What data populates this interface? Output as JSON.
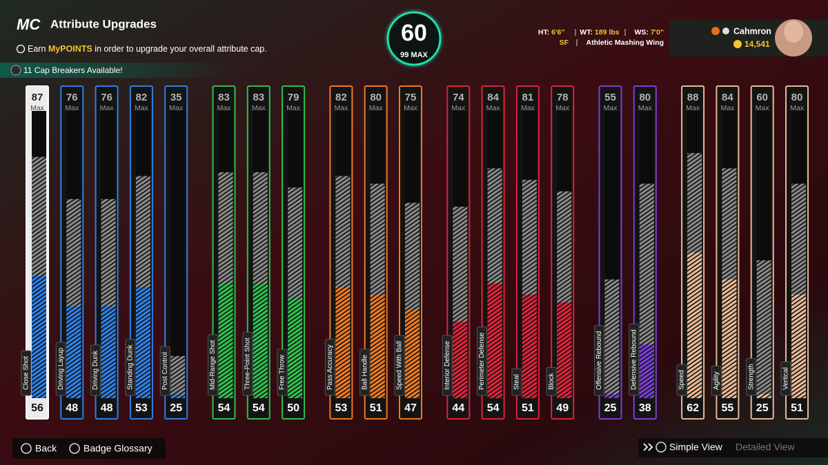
{
  "header": {
    "logo": "MC",
    "title": "Attribute Upgrades",
    "info_prefix": "Earn",
    "info_highlight": "MyPOINTS",
    "info_suffix": "in order to upgrade your overall attribute cap.",
    "cap_breakers": "11 Cap Breakers Available!"
  },
  "overall": {
    "value": 60,
    "max_label": "99 MAX"
  },
  "profile": {
    "ht_label": "HT:",
    "ht": "6'6\"",
    "wt_label": "WT:",
    "wt": "189 lbs",
    "ws_label": "WS:",
    "ws": "7'0\"",
    "position": "SF",
    "archetype": "Athletic Mashing Wing",
    "name": "Cahmron",
    "vc": "14,541"
  },
  "attributes": {
    "max_label": "Max",
    "ylim": [
      24,
      99
    ],
    "selected": "Close Shot",
    "groups": [
      {
        "color": "#2f7fe6",
        "items": [
          {
            "name": "Close Shot",
            "max": 87,
            "value": 56
          },
          {
            "name": "Driving Layup",
            "max": 76,
            "value": 48
          },
          {
            "name": "Driving Dunk",
            "max": 76,
            "value": 48
          },
          {
            "name": "Standing Dunk",
            "max": 82,
            "value": 53
          },
          {
            "name": "Post Control",
            "max": 35,
            "value": 25
          }
        ]
      },
      {
        "color": "#2fbf4f",
        "items": [
          {
            "name": "Mid-Range Shot",
            "max": 83,
            "value": 54
          },
          {
            "name": "Three-Point Shot",
            "max": 83,
            "value": 54
          },
          {
            "name": "Free Throw",
            "max": 79,
            "value": 50
          }
        ]
      },
      {
        "color": "#ee7a22",
        "items": [
          {
            "name": "Pass Accuracy",
            "max": 82,
            "value": 53
          },
          {
            "name": "Ball Handle",
            "max": 80,
            "value": 51
          },
          {
            "name": "Speed With Ball",
            "max": 75,
            "value": 47
          }
        ]
      },
      {
        "color": "#e0223a",
        "items": [
          {
            "name": "Interior Defense",
            "max": 74,
            "value": 44
          },
          {
            "name": "Perimeter Defense",
            "max": 84,
            "value": 54
          },
          {
            "name": "Steal",
            "max": 81,
            "value": 51
          },
          {
            "name": "Block",
            "max": 78,
            "value": 49
          }
        ]
      },
      {
        "color": "#7a3fd6",
        "items": [
          {
            "name": "Offensive Rebound",
            "max": 55,
            "value": 25
          },
          {
            "name": "Defensive Rebound",
            "max": 80,
            "value": 38
          }
        ]
      },
      {
        "color": "#e9b995",
        "items": [
          {
            "name": "Speed",
            "max": 88,
            "value": 62
          },
          {
            "name": "Agility",
            "max": 84,
            "value": 55
          },
          {
            "name": "Strength",
            "max": 60,
            "value": 25
          },
          {
            "name": "Vertical",
            "max": 80,
            "value": 51
          }
        ]
      }
    ]
  },
  "footer": {
    "back": "Back",
    "glossary": "Badge Glossary",
    "simple": "Simple View",
    "detailed": "Detailed View"
  }
}
